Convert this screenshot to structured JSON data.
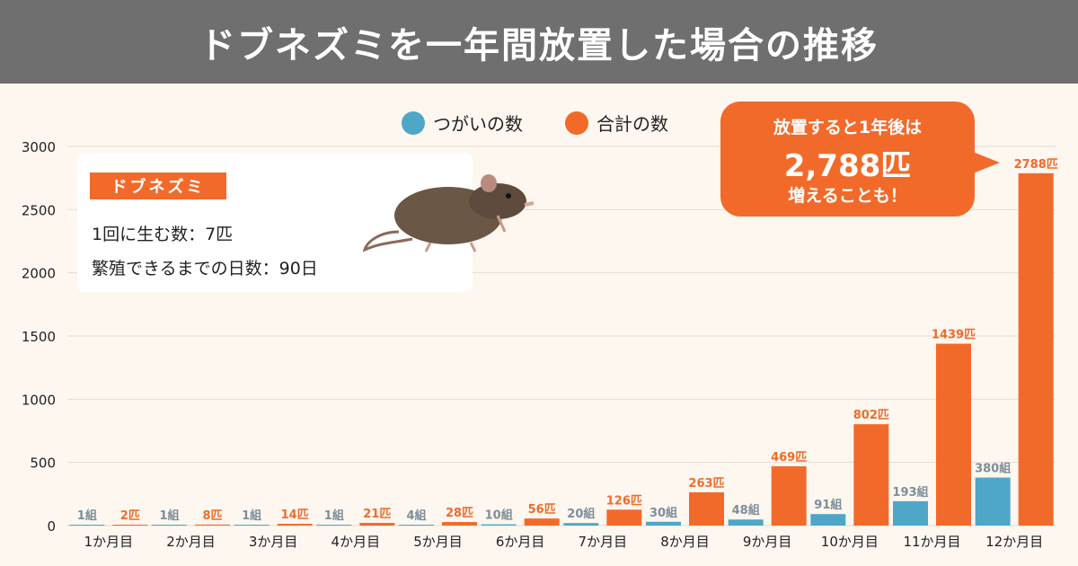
{
  "title": "ドブネズミを一年間放置した場合の推移",
  "info": {
    "badge": "ドブネズミ",
    "line1": "1回に生む数：7匹",
    "line2": "繁殖できるまでの日数：90日"
  },
  "callout": {
    "line1": "放置すると1年後は",
    "line2": "2,788匹",
    "line3": "増えることも！"
  },
  "colors": {
    "pairs": "#4ea7c7",
    "total": "#f26a2a",
    "banner": "#6f6f6f"
  },
  "chart_data": {
    "type": "bar",
    "categories": [
      "1か月目",
      "2か月目",
      "3か月目",
      "4か月目",
      "5か月目",
      "6か月目",
      "7か月目",
      "8か月目",
      "9か月目",
      "10か月目",
      "11か月目",
      "12か月目"
    ],
    "series": [
      {
        "name": "つがいの数",
        "values": [
          1,
          1,
          1,
          1,
          4,
          10,
          20,
          30,
          48,
          91,
          193,
          380
        ],
        "labels": [
          "1組",
          "1組",
          "1組",
          "1組",
          "4組",
          "10組",
          "20組",
          "30組",
          "48組",
          "91組",
          "193組",
          "380組"
        ]
      },
      {
        "name": "合計の数",
        "values": [
          2,
          8,
          14,
          21,
          28,
          56,
          126,
          263,
          469,
          802,
          1439,
          2788
        ],
        "labels": [
          "2匹",
          "8匹",
          "14匹",
          "21匹",
          "28匹",
          "56匹",
          "126匹",
          "263匹",
          "469匹",
          "802匹",
          "1439匹",
          "2788匹"
        ]
      }
    ],
    "ylim": [
      0,
      3000
    ],
    "yticks": [
      0,
      500,
      1000,
      1500,
      2000,
      2500,
      3000
    ],
    "grid": true,
    "legend": "top-center"
  }
}
